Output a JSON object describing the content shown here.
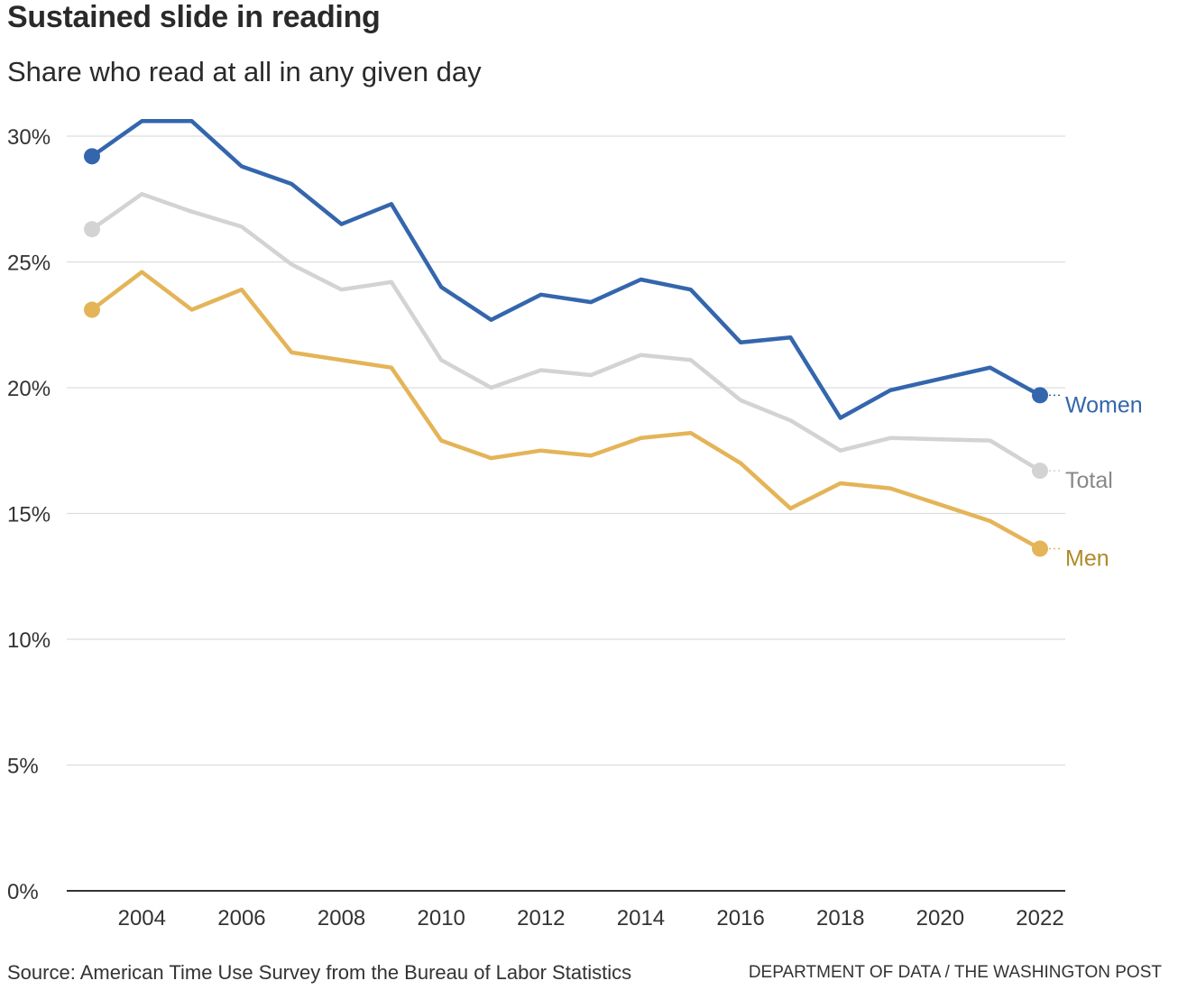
{
  "header": {
    "title": "Sustained slide in reading",
    "subtitle": "Share who read at all in any given day"
  },
  "footer": {
    "source": "Source: American Time Use Survey from the Bureau of Labor Statistics",
    "credit": "DEPARTMENT OF DATA / THE WASHINGTON POST"
  },
  "chart_data": {
    "type": "line",
    "title": "Sustained slide in reading",
    "subtitle": "Share who read at all in any given day",
    "xlabel": "",
    "ylabel": "",
    "x": [
      2003,
      2004,
      2005,
      2006,
      2007,
      2008,
      2009,
      2010,
      2011,
      2012,
      2013,
      2014,
      2015,
      2016,
      2017,
      2018,
      2019,
      2020,
      2021,
      2022
    ],
    "xlim": [
      2003,
      2022
    ],
    "ylim": [
      0,
      30
    ],
    "x_ticks": [
      "2004",
      "2006",
      "2008",
      "2010",
      "2012",
      "2014",
      "2016",
      "2018",
      "2020",
      "2022"
    ],
    "y_ticks": [
      "0%",
      "5%",
      "10%",
      "15%",
      "20%",
      "25%",
      "30%"
    ],
    "grid": true,
    "legend": "direct labels at line ends (right)",
    "series": [
      {
        "name": "Total",
        "color": "#d3d3d3",
        "values": [
          26.3,
          27.7,
          27.0,
          26.4,
          24.9,
          23.9,
          24.2,
          21.1,
          20.0,
          20.7,
          20.5,
          21.3,
          21.1,
          19.5,
          18.7,
          17.5,
          18.0,
          17.95,
          17.9,
          16.7
        ]
      },
      {
        "name": "Women",
        "color": "#3466ad",
        "values": [
          29.2,
          30.6,
          30.6,
          28.8,
          28.1,
          26.5,
          27.3,
          24.0,
          22.7,
          23.7,
          23.4,
          24.3,
          23.9,
          21.8,
          22.0,
          18.8,
          19.9,
          20.35,
          20.8,
          19.7
        ]
      },
      {
        "name": "Men",
        "color": "#e4b458",
        "values": [
          23.1,
          24.6,
          23.1,
          23.9,
          21.4,
          21.1,
          20.8,
          17.9,
          17.2,
          17.5,
          17.3,
          18.0,
          18.2,
          17.0,
          15.2,
          16.2,
          16.0,
          15.35,
          14.7,
          13.6
        ]
      }
    ],
    "label_colors": {
      "Women": "#3466ad",
      "Total": "#888888",
      "Men": "#b08a2a"
    }
  }
}
